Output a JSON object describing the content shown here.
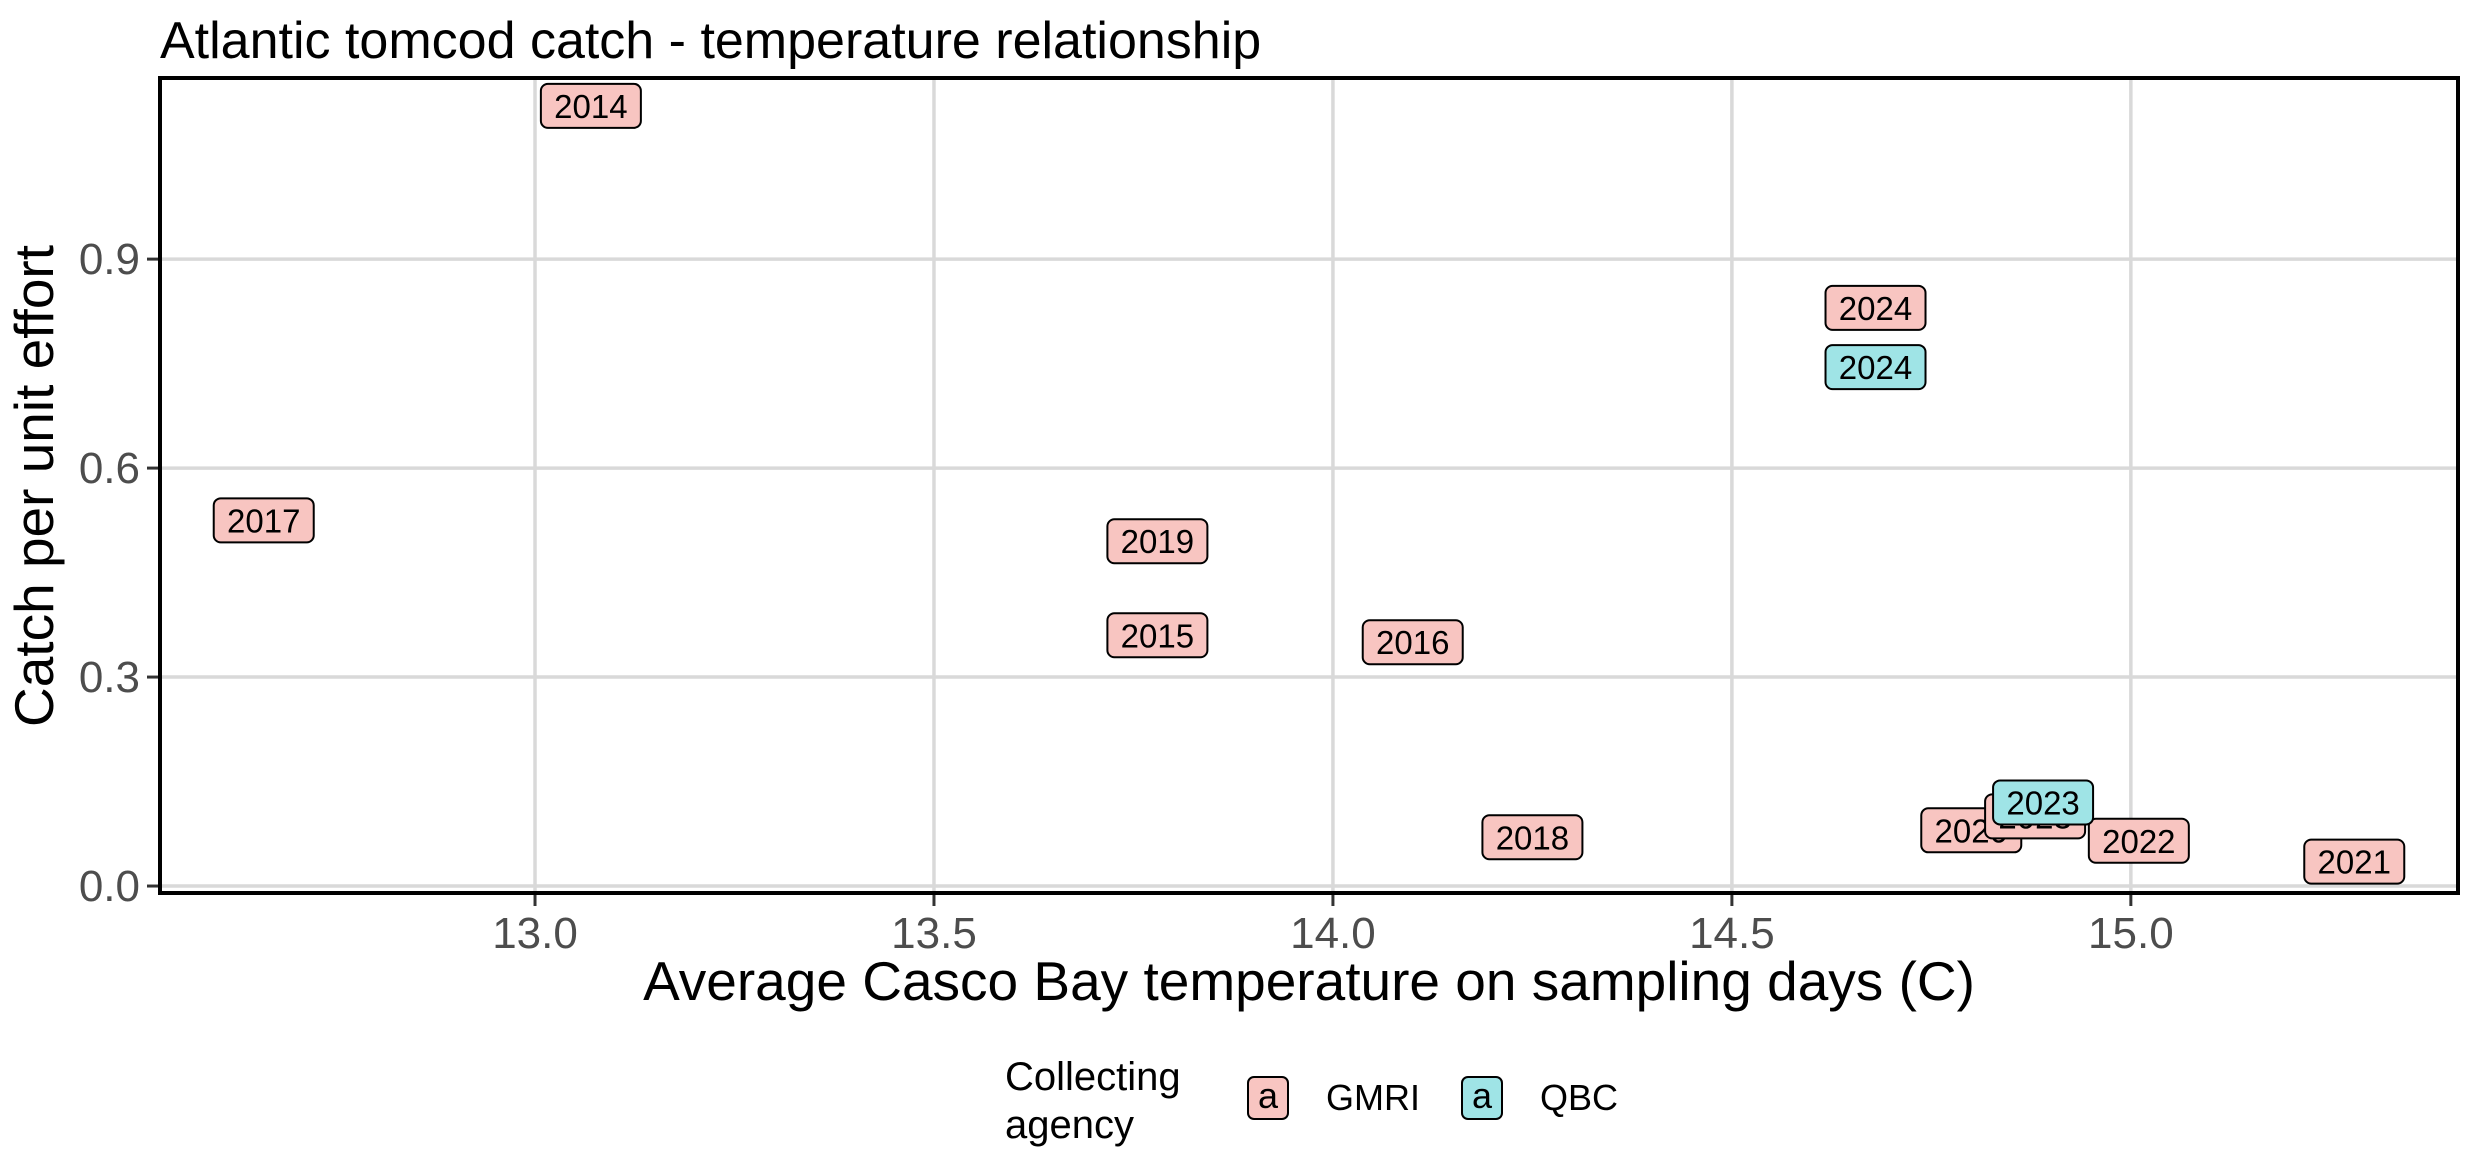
{
  "chart_data": {
    "type": "scatter",
    "title": "Atlantic tomcod catch - temperature relationship",
    "xlabel": "Average Casco Bay temperature on sampling days (C)",
    "ylabel": "Catch per unit effort",
    "xlim": [
      12.53,
      15.41
    ],
    "ylim": [
      -0.01,
      1.16
    ],
    "xticks": [
      13.0,
      13.5,
      14.0,
      14.5,
      15.0
    ],
    "xtick_labels": [
      "13.0",
      "13.5",
      "14.0",
      "14.5",
      "15.0"
    ],
    "yticks": [
      0.0,
      0.3,
      0.6,
      0.9
    ],
    "ytick_labels": [
      "0.0",
      "0.3",
      "0.6",
      "0.9"
    ],
    "grid": true,
    "legend": {
      "title_lines": [
        "Collecting",
        "agency"
      ],
      "placement": "bottom",
      "key_glyph": "a",
      "entries": [
        {
          "name": "GMRI",
          "color": "#F8C5C1"
        },
        {
          "name": "QBC",
          "color": "#9FE4E6"
        }
      ]
    },
    "series": [
      {
        "name": "GMRI",
        "color": "#F8C5C1",
        "points": [
          {
            "x": 13.07,
            "y": 1.12,
            "label": "2014"
          },
          {
            "x": 12.66,
            "y": 0.525,
            "label": "2017"
          },
          {
            "x": 13.78,
            "y": 0.495,
            "label": "2019"
          },
          {
            "x": 13.78,
            "y": 0.36,
            "label": "2015"
          },
          {
            "x": 14.1,
            "y": 0.35,
            "label": "2016"
          },
          {
            "x": 14.25,
            "y": 0.07,
            "label": "2018"
          },
          {
            "x": 14.68,
            "y": 0.83,
            "label": "2024"
          },
          {
            "x": 14.8,
            "y": 0.08,
            "label": "2020"
          },
          {
            "x": 14.88,
            "y": 0.1,
            "label": "2023"
          },
          {
            "x": 15.01,
            "y": 0.065,
            "label": "2022"
          },
          {
            "x": 15.28,
            "y": 0.035,
            "label": "2021"
          }
        ]
      },
      {
        "name": "QBC",
        "color": "#9FE4E6",
        "points": [
          {
            "x": 14.68,
            "y": 0.745,
            "label": "2024"
          },
          {
            "x": 14.89,
            "y": 0.12,
            "label": "2023"
          }
        ]
      }
    ]
  }
}
